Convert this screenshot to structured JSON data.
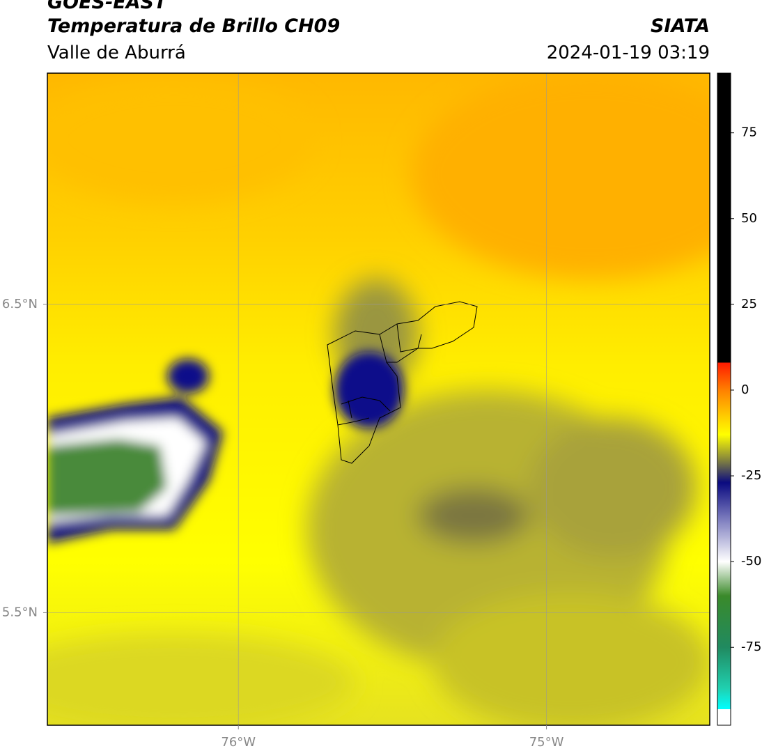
{
  "chart_data": {
    "type": "map",
    "title": "GOES-EAST",
    "subtitle": "Temperatura de Brillo CH09",
    "region": "Valle de Aburrá",
    "source": "SIATA",
    "date": "2024-01-19 03:19",
    "xlim": [
      -76.62,
      -74.47
    ],
    "ylim": [
      5.135,
      7.25
    ],
    "xticks": [
      {
        "value": -76,
        "label": "76°W"
      },
      {
        "value": -75,
        "label": "75°W"
      }
    ],
    "yticks": [
      {
        "value": 6.5,
        "label": "6.5°N"
      },
      {
        "value": 5.5,
        "label": "5.5°N"
      }
    ],
    "grid": true,
    "colorbar": {
      "lim": [
        -97.7,
        92.4
      ],
      "ticks": [
        75,
        50,
        25,
        0,
        -25,
        -50,
        -75
      ],
      "stops": [
        {
          "value": 92.4,
          "color": "#000000"
        },
        {
          "value": 8,
          "color": "#000000"
        },
        {
          "value": 8,
          "color": "#ff1a00"
        },
        {
          "value": 0,
          "color": "#ff8000"
        },
        {
          "value": -8,
          "color": "#ffd000"
        },
        {
          "value": -13,
          "color": "#ffff00"
        },
        {
          "value": -20,
          "color": "#8a8a3a"
        },
        {
          "value": -27,
          "color": "#0a0a80"
        },
        {
          "value": -38,
          "color": "#8080c0"
        },
        {
          "value": -50,
          "color": "#ffffff"
        },
        {
          "value": -60,
          "color": "#3a8a2a"
        },
        {
          "value": -75,
          "color": "#208a60"
        },
        {
          "value": -87,
          "color": "#20d0b0"
        },
        {
          "value": -93,
          "color": "#00ffff"
        },
        {
          "value": -93,
          "color": "#ffffff"
        },
        {
          "value": -97.7,
          "color": "#ffffff"
        }
      ]
    }
  }
}
